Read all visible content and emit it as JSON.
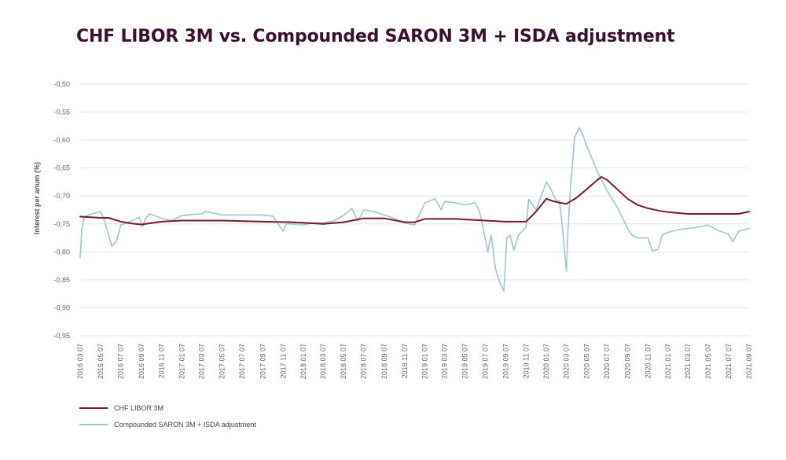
{
  "title": "CHF LIBOR 3M vs. Compounded SARON 3M + ISDA adjustment",
  "colors": {
    "libor": "#7b1a2c",
    "saron": "#9cc6d8",
    "grid": "#e4e4e4",
    "title": "#3a1230"
  },
  "chart_data": {
    "type": "line",
    "title": "CHF LIBOR 3M vs. Compounded SARON 3M + ISDA adjustment",
    "xlabel": "",
    "ylabel": "Interest per anum (%)",
    "ylim": [
      -0.95,
      -0.5
    ],
    "yticks": [
      -0.5,
      -0.55,
      -0.6,
      -0.65,
      -0.7,
      -0.75,
      -0.8,
      -0.85,
      -0.9,
      -0.95
    ],
    "ytick_labels": [
      "-0,50",
      "-0,55",
      "-0,60",
      "-0,65",
      "-0,70",
      "-0,75",
      "-0,80",
      "-0,85",
      "-0,90",
      "-0,95"
    ],
    "xlim": [
      "2016 03 07",
      "2021 09 07"
    ],
    "xtick_labels": [
      "2016 03 07",
      "2016 05 07",
      "2016 07 07",
      "2016 09 07",
      "2016 11 07",
      "2017 01 07",
      "2017 03 07",
      "2017 05 07",
      "2017 07 07",
      "2017 09 07",
      "2017 11 07",
      "2018 01 07",
      "2018 03 07",
      "2018 05 07",
      "2018 07 07",
      "2018 09 07",
      "2018 11 07",
      "2019 01 07",
      "2019 03 07",
      "2019 05 07",
      "2019 07 07",
      "2019 09 07",
      "2019 11 07",
      "2020 01 07",
      "2020 03 07",
      "2020 05 07",
      "2020 07 07",
      "2020 09 07",
      "2020 11 07",
      "2021 01 07",
      "2021 03 07",
      "2021 05 07",
      "2021 07 07",
      "2021 09 07"
    ],
    "grid": true,
    "legend_position": "bottom-left",
    "series": [
      {
        "name": "CHF LIBOR 3M",
        "color": "#7b1a2c",
        "points": [
          [
            "2016 03 07",
            -0.737
          ],
          [
            "2016 05 07",
            -0.739
          ],
          [
            "2016 06 01",
            -0.739
          ],
          [
            "2016 07 07",
            -0.746
          ],
          [
            "2016 08 07",
            -0.749
          ],
          [
            "2016 09 07",
            -0.751
          ],
          [
            "2016 11 07",
            -0.746
          ],
          [
            "2017 01 07",
            -0.744
          ],
          [
            "2017 05 07",
            -0.744
          ],
          [
            "2017 09 07",
            -0.746
          ],
          [
            "2017 12 07",
            -0.747
          ],
          [
            "2018 03 07",
            -0.75
          ],
          [
            "2018 05 07",
            -0.747
          ],
          [
            "2018 07 07",
            -0.74
          ],
          [
            "2018 09 07",
            -0.74
          ],
          [
            "2018 11 07",
            -0.747
          ],
          [
            "2018 12 07",
            -0.747
          ],
          [
            "2019 01 07",
            -0.741
          ],
          [
            "2019 04 07",
            -0.741
          ],
          [
            "2019 07 07",
            -0.744
          ],
          [
            "2019 09 07",
            -0.746
          ],
          [
            "2019 11 07",
            -0.746
          ],
          [
            "2019 12 07",
            -0.728
          ],
          [
            "2020 01 07",
            -0.705
          ],
          [
            "2020 01 25",
            -0.709
          ],
          [
            "2020 02 15",
            -0.712
          ],
          [
            "2020 03 07",
            -0.714
          ],
          [
            "2020 04 07",
            -0.703
          ],
          [
            "2020 05 07",
            -0.688
          ],
          [
            "2020 06 07",
            -0.672
          ],
          [
            "2020 06 20",
            -0.666
          ],
          [
            "2020 07 07",
            -0.671
          ],
          [
            "2020 08 07",
            -0.688
          ],
          [
            "2020 09 07",
            -0.705
          ],
          [
            "2020 10 07",
            -0.716
          ],
          [
            "2020 11 07",
            -0.722
          ],
          [
            "2020 12 07",
            -0.726
          ],
          [
            "2021 01 07",
            -0.729
          ],
          [
            "2021 03 07",
            -0.732
          ],
          [
            "2021 05 07",
            -0.732
          ],
          [
            "2021 07 07",
            -0.732
          ],
          [
            "2021 08 07",
            -0.732
          ],
          [
            "2021 09 07",
            -0.728
          ]
        ]
      },
      {
        "name": "Compounded SARON 3M + ISDA adjustment",
        "color": "#9cc6d8",
        "points": [
          [
            "2016 03 07",
            -0.81
          ],
          [
            "2016 03 12",
            -0.76
          ],
          [
            "2016 03 20",
            -0.737
          ],
          [
            "2016 04 07",
            -0.733
          ],
          [
            "2016 05 07",
            -0.728
          ],
          [
            "2016 05 20",
            -0.745
          ],
          [
            "2016 06 10",
            -0.79
          ],
          [
            "2016 06 25",
            -0.78
          ],
          [
            "2016 07 07",
            -0.752
          ],
          [
            "2016 08 07",
            -0.745
          ],
          [
            "2016 09 01",
            -0.738
          ],
          [
            "2016 09 10",
            -0.755
          ],
          [
            "2016 09 20",
            -0.74
          ],
          [
            "2016 10 01",
            -0.732
          ],
          [
            "2016 11 07",
            -0.74
          ],
          [
            "2016 12 07",
            -0.744
          ],
          [
            "2017 01 07",
            -0.735
          ],
          [
            "2017 03 07",
            -0.732
          ],
          [
            "2017 03 20",
            -0.728
          ],
          [
            "2017 05 07",
            -0.734
          ],
          [
            "2017 07 07",
            -0.734
          ],
          [
            "2017 09 07",
            -0.734
          ],
          [
            "2017 10 07",
            -0.736
          ],
          [
            "2017 10 25",
            -0.752
          ],
          [
            "2017 11 07",
            -0.763
          ],
          [
            "2017 11 15",
            -0.75
          ],
          [
            "2017 12 07",
            -0.75
          ],
          [
            "2018 01 07",
            -0.752
          ],
          [
            "2018 02 07",
            -0.748
          ],
          [
            "2018 03 07",
            -0.748
          ],
          [
            "2018 04 07",
            -0.745
          ],
          [
            "2018 05 07",
            -0.735
          ],
          [
            "2018 06 01",
            -0.722
          ],
          [
            "2018 06 20",
            -0.745
          ],
          [
            "2018 07 07",
            -0.725
          ],
          [
            "2018 08 07",
            -0.728
          ],
          [
            "2018 09 07",
            -0.734
          ],
          [
            "2018 10 07",
            -0.74
          ],
          [
            "2018 11 07",
            -0.748
          ],
          [
            "2018 12 07",
            -0.752
          ],
          [
            "2018 12 20",
            -0.735
          ],
          [
            "2019 01 07",
            -0.712
          ],
          [
            "2019 02 07",
            -0.705
          ],
          [
            "2019 02 25",
            -0.725
          ],
          [
            "2019 03 07",
            -0.71
          ],
          [
            "2019 04 07",
            -0.712
          ],
          [
            "2019 05 07",
            -0.716
          ],
          [
            "2019 06 07",
            -0.712
          ],
          [
            "2019 06 20",
            -0.728
          ],
          [
            "2019 07 01",
            -0.758
          ],
          [
            "2019 07 15",
            -0.8
          ],
          [
            "2019 07 25",
            -0.77
          ],
          [
            "2019 08 07",
            -0.83
          ],
          [
            "2019 08 20",
            -0.855
          ],
          [
            "2019 09 01",
            -0.87
          ],
          [
            "2019 09 10",
            -0.775
          ],
          [
            "2019 09 20",
            -0.77
          ],
          [
            "2019 10 01",
            -0.797
          ],
          [
            "2019 10 15",
            -0.77
          ],
          [
            "2019 11 07",
            -0.756
          ],
          [
            "2019 11 15",
            -0.706
          ],
          [
            "2019 12 07",
            -0.725
          ],
          [
            "2020 01 07",
            -0.675
          ],
          [
            "2020 01 20",
            -0.688
          ],
          [
            "2020 02 07",
            -0.71
          ],
          [
            "2020 02 15",
            -0.708
          ],
          [
            "2020 02 25",
            -0.76
          ],
          [
            "2020 03 07",
            -0.835
          ],
          [
            "2020 03 12",
            -0.76
          ],
          [
            "2020 03 20",
            -0.68
          ],
          [
            "2020 04 01",
            -0.595
          ],
          [
            "2020 04 15",
            -0.578
          ],
          [
            "2020 04 25",
            -0.59
          ],
          [
            "2020 05 07",
            -0.61
          ],
          [
            "2020 06 07",
            -0.655
          ],
          [
            "2020 07 07",
            -0.69
          ],
          [
            "2020 08 07",
            -0.72
          ],
          [
            "2020 09 07",
            -0.758
          ],
          [
            "2020 09 20",
            -0.77
          ],
          [
            "2020 10 07",
            -0.775
          ],
          [
            "2020 11 07",
            -0.775
          ],
          [
            "2020 11 20",
            -0.798
          ],
          [
            "2020 12 07",
            -0.796
          ],
          [
            "2020 12 20",
            -0.77
          ],
          [
            "2021 01 07",
            -0.765
          ],
          [
            "2021 02 07",
            -0.76
          ],
          [
            "2021 03 07",
            -0.758
          ],
          [
            "2021 04 07",
            -0.756
          ],
          [
            "2021 05 07",
            -0.752
          ],
          [
            "2021 06 07",
            -0.762
          ],
          [
            "2021 07 07",
            -0.768
          ],
          [
            "2021 07 20",
            -0.782
          ],
          [
            "2021 08 07",
            -0.763
          ],
          [
            "2021 09 07",
            -0.758
          ]
        ]
      }
    ]
  }
}
